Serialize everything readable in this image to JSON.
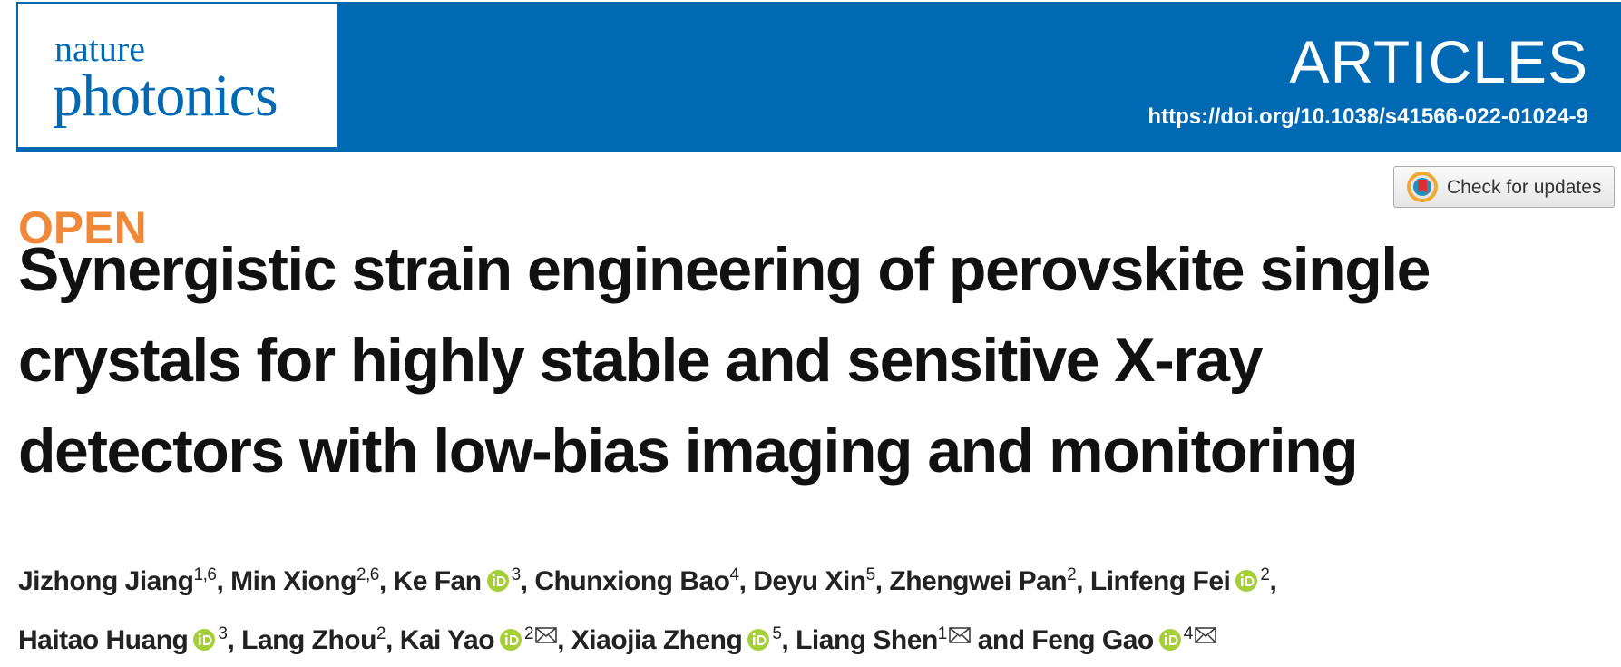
{
  "header": {
    "journal_line1": "nature",
    "journal_line2": "photonics",
    "section": "ARTICLES",
    "doi": "https://doi.org/10.1038/s41566-022-01024-9"
  },
  "check_updates": "Check for updates",
  "open_label": "OPEN",
  "title_lines": [
    "Synergistic strain engineering of perovskite single",
    "crystals for highly stable and sensitive X-ray",
    "detectors with low-bias imaging and monitoring"
  ],
  "authors": [
    {
      "name": "Jizhong Jiang",
      "affiliations": "1,6",
      "orcid": false,
      "corresponding": false,
      "separator": ","
    },
    {
      "name": "Min Xiong",
      "affiliations": "2,6",
      "orcid": false,
      "corresponding": false,
      "separator": ","
    },
    {
      "name": "Ke Fan",
      "affiliations": "3",
      "orcid": true,
      "corresponding": false,
      "separator": ","
    },
    {
      "name": "Chunxiong Bao",
      "affiliations": "4",
      "orcid": false,
      "corresponding": false,
      "separator": ","
    },
    {
      "name": "Deyu Xin",
      "affiliations": "5",
      "orcid": false,
      "corresponding": false,
      "separator": ","
    },
    {
      "name": "Zhengwei Pan",
      "affiliations": "2",
      "orcid": false,
      "corresponding": false,
      "separator": ","
    },
    {
      "name": "Linfeng Fei",
      "affiliations": "2",
      "orcid": true,
      "corresponding": false,
      "separator": ","
    },
    {
      "name": "Haitao Huang",
      "affiliations": "3",
      "orcid": true,
      "corresponding": false,
      "separator": ","
    },
    {
      "name": "Lang Zhou",
      "affiliations": "2",
      "orcid": false,
      "corresponding": false,
      "separator": ","
    },
    {
      "name": "Kai Yao",
      "affiliations": "2",
      "orcid": true,
      "corresponding": true,
      "separator": ","
    },
    {
      "name": "Xiaojia Zheng",
      "affiliations": "5",
      "orcid": true,
      "corresponding": false,
      "separator": ","
    },
    {
      "name": "Liang Shen",
      "affiliations": "1",
      "orcid": false,
      "corresponding": true,
      "separator": "and"
    },
    {
      "name": "Feng Gao",
      "affiliations": "4",
      "orcid": true,
      "corresponding": true
    }
  ]
}
